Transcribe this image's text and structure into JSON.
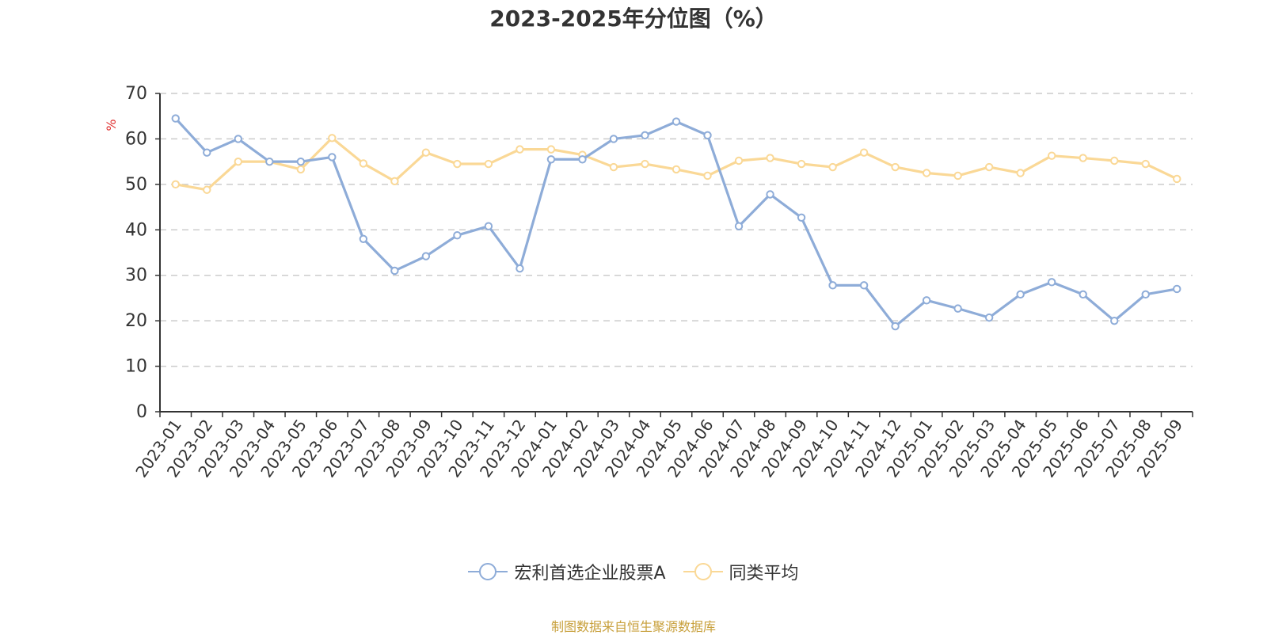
{
  "chart_data": {
    "type": "line",
    "title": "2023-2025年分位图（%）",
    "ylabel": "%",
    "xlabel": "",
    "ylim": [
      0,
      70
    ],
    "yticks": [
      0,
      10,
      20,
      30,
      40,
      50,
      60,
      70
    ],
    "grid": true,
    "legend_position": "bottom",
    "categories": [
      "2023-01",
      "2023-02",
      "2023-03",
      "2023-04",
      "2023-05",
      "2023-06",
      "2023-07",
      "2023-08",
      "2023-09",
      "2023-10",
      "2023-11",
      "2023-12",
      "2024-01",
      "2024-02",
      "2024-03",
      "2024-04",
      "2024-05",
      "2024-06",
      "2024-07",
      "2024-08",
      "2024-09",
      "2024-10",
      "2024-11",
      "2024-12",
      "2025-01",
      "2025-02",
      "2025-03",
      "2025-04",
      "2025-05",
      "2025-06",
      "2025-07",
      "2025-08",
      "2025-09"
    ],
    "series": [
      {
        "name": "宏利首选企业股票A",
        "color": "#8eacd8",
        "values": [
          64.5,
          57.0,
          60.0,
          55.0,
          55.0,
          56.0,
          38.0,
          31.0,
          34.2,
          38.8,
          40.8,
          31.5,
          55.5,
          55.5,
          60.0,
          60.8,
          63.8,
          60.8,
          40.8,
          47.8,
          42.7,
          27.8,
          27.8,
          18.8,
          24.5,
          22.7,
          20.7,
          25.8,
          28.5,
          25.8,
          20.0,
          25.8,
          27.0
        ]
      },
      {
        "name": "同类平均",
        "color": "#fad896",
        "values": [
          50.0,
          48.8,
          55.0,
          55.0,
          53.3,
          60.2,
          54.6,
          50.7,
          57.0,
          54.5,
          54.5,
          57.7,
          57.7,
          56.5,
          53.8,
          54.5,
          53.3,
          51.9,
          55.2,
          55.8,
          54.5,
          53.8,
          57.0,
          53.8,
          52.5,
          51.9,
          53.8,
          52.5,
          56.3,
          55.8,
          55.2,
          54.5,
          51.2
        ]
      }
    ]
  },
  "footer": {
    "source": "制图数据来自恒生聚源数据库"
  },
  "colors": {
    "axis": "#333333",
    "grid": "#cccccc",
    "ylabel": "#e03030",
    "source": "#c8a03c"
  }
}
